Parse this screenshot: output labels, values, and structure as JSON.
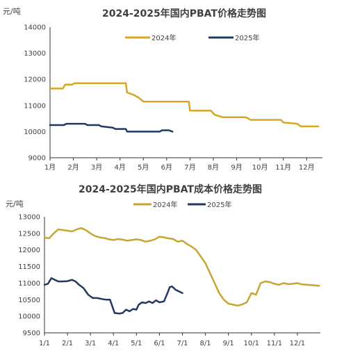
{
  "chart_data": [
    {
      "type": "line",
      "title": "2024-2025年国内PBAT价格走势图",
      "ylabel": "元/吨",
      "xlabel": "",
      "ylim": [
        9000,
        14000
      ],
      "y_ticks": [
        "14000",
        "13000",
        "12000",
        "11000",
        "10000",
        "9000"
      ],
      "x_ticks": [
        "1月",
        "2月",
        "3月",
        "4月",
        "5月",
        "6月",
        "7月",
        "8月",
        "9月",
        "10月",
        "11月",
        "12月"
      ],
      "legend": "top-right",
      "series": [
        {
          "name": "2024年",
          "color": "#DAA520",
          "points": [
            [
              1.0,
              11650
            ],
            [
              1.55,
              11650
            ],
            [
              1.65,
              11800
            ],
            [
              1.95,
              11800
            ],
            [
              2.05,
              11850
            ],
            [
              3.4,
              11850
            ],
            [
              3.5,
              11850
            ],
            [
              4.25,
              11850
            ],
            [
              4.3,
              11500
            ],
            [
              4.6,
              11400
            ],
            [
              4.8,
              11300
            ],
            [
              5.0,
              11150
            ],
            [
              5.8,
              11150
            ],
            [
              6.5,
              11150
            ],
            [
              6.95,
              11150
            ],
            [
              7.0,
              10800
            ],
            [
              7.9,
              10800
            ],
            [
              8.05,
              10650
            ],
            [
              8.4,
              10550
            ],
            [
              9.4,
              10550
            ],
            [
              9.6,
              10450
            ],
            [
              10.9,
              10450
            ],
            [
              11.0,
              10350
            ],
            [
              11.6,
              10300
            ],
            [
              11.75,
              10200
            ],
            [
              12.5,
              10200
            ]
          ]
        },
        {
          "name": "2025年",
          "color": "#1F3864",
          "points": [
            [
              1.0,
              10250
            ],
            [
              1.6,
              10250
            ],
            [
              1.7,
              10300
            ],
            [
              2.5,
              10300
            ],
            [
              2.6,
              10250
            ],
            [
              3.1,
              10250
            ],
            [
              3.2,
              10200
            ],
            [
              3.7,
              10150
            ],
            [
              3.8,
              10100
            ],
            [
              4.25,
              10100
            ],
            [
              4.3,
              10000
            ],
            [
              5.7,
              10000
            ],
            [
              5.8,
              10050
            ],
            [
              6.1,
              10050
            ],
            [
              6.25,
              10000
            ]
          ]
        }
      ]
    },
    {
      "type": "line",
      "title": "2024-2025年国内PBAT成本价格走势图",
      "ylabel": "元/吨",
      "xlabel": "",
      "ylim": [
        9500,
        13000
      ],
      "y_ticks": [
        "13000",
        "12500",
        "12000",
        "11500",
        "11000",
        "10500",
        "10000",
        "9500"
      ],
      "x_ticks": [
        "1/1",
        "2/1",
        "3/1",
        "4/1",
        "5/1",
        "6/1",
        "7/1",
        "8/1",
        "9/1",
        "10/1",
        "11/1",
        "12/1"
      ],
      "legend": "top-center",
      "series": [
        {
          "name": "2024年",
          "color": "#C8A432",
          "points": [
            [
              1.0,
              12380
            ],
            [
              1.2,
              12350
            ],
            [
              1.4,
              12500
            ],
            [
              1.6,
              12620
            ],
            [
              1.8,
              12600
            ],
            [
              2.0,
              12580
            ],
            [
              2.2,
              12560
            ],
            [
              2.4,
              12620
            ],
            [
              2.6,
              12660
            ],
            [
              2.8,
              12600
            ],
            [
              3.0,
              12500
            ],
            [
              3.2,
              12420
            ],
            [
              3.4,
              12380
            ],
            [
              3.6,
              12360
            ],
            [
              3.8,
              12320
            ],
            [
              4.0,
              12300
            ],
            [
              4.2,
              12330
            ],
            [
              4.4,
              12310
            ],
            [
              4.6,
              12280
            ],
            [
              4.8,
              12300
            ],
            [
              5.0,
              12320
            ],
            [
              5.2,
              12300
            ],
            [
              5.4,
              12250
            ],
            [
              5.6,
              12280
            ],
            [
              5.8,
              12320
            ],
            [
              6.0,
              12400
            ],
            [
              6.2,
              12380
            ],
            [
              6.4,
              12350
            ],
            [
              6.6,
              12330
            ],
            [
              6.8,
              12250
            ],
            [
              7.0,
              12280
            ],
            [
              7.2,
              12180
            ],
            [
              7.4,
              12100
            ],
            [
              7.6,
              12000
            ],
            [
              7.8,
              11800
            ],
            [
              8.0,
              11600
            ],
            [
              8.2,
              11300
            ],
            [
              8.4,
              11000
            ],
            [
              8.6,
              10700
            ],
            [
              8.8,
              10500
            ],
            [
              9.0,
              10380
            ],
            [
              9.2,
              10350
            ],
            [
              9.4,
              10320
            ],
            [
              9.6,
              10360
            ],
            [
              9.8,
              10420
            ],
            [
              10.0,
              10700
            ],
            [
              10.2,
              10650
            ],
            [
              10.4,
              11000
            ],
            [
              10.6,
              11050
            ],
            [
              10.8,
              11030
            ],
            [
              11.0,
              10980
            ],
            [
              11.2,
              10950
            ],
            [
              11.4,
              11000
            ],
            [
              11.6,
              10970
            ],
            [
              11.8,
              10980
            ],
            [
              12.0,
              11000
            ],
            [
              12.2,
              10960
            ],
            [
              12.4,
              10950
            ],
            [
              12.6,
              10940
            ],
            [
              12.95,
              10920
            ]
          ]
        },
        {
          "name": "2025年",
          "color": "#22385E",
          "points": [
            [
              1.0,
              10950
            ],
            [
              1.15,
              10980
            ],
            [
              1.3,
              11150
            ],
            [
              1.45,
              11100
            ],
            [
              1.6,
              11050
            ],
            [
              1.8,
              11050
            ],
            [
              2.0,
              11060
            ],
            [
              2.2,
              11100
            ],
            [
              2.35,
              11050
            ],
            [
              2.5,
              10950
            ],
            [
              2.7,
              10850
            ],
            [
              2.9,
              10650
            ],
            [
              3.1,
              10550
            ],
            [
              3.3,
              10550
            ],
            [
              3.5,
              10520
            ],
            [
              3.7,
              10500
            ],
            [
              3.85,
              10500
            ],
            [
              3.95,
              10300
            ],
            [
              4.05,
              10100
            ],
            [
              4.25,
              10080
            ],
            [
              4.4,
              10100
            ],
            [
              4.55,
              10200
            ],
            [
              4.7,
              10150
            ],
            [
              4.85,
              10220
            ],
            [
              5.0,
              10200
            ],
            [
              5.1,
              10350
            ],
            [
              5.25,
              10420
            ],
            [
              5.4,
              10400
            ],
            [
              5.55,
              10450
            ],
            [
              5.7,
              10400
            ],
            [
              5.85,
              10480
            ],
            [
              6.0,
              10420
            ],
            [
              6.2,
              10450
            ],
            [
              6.35,
              10700
            ],
            [
              6.45,
              10880
            ],
            [
              6.55,
              10900
            ],
            [
              6.7,
              10800
            ],
            [
              6.85,
              10750
            ],
            [
              7.0,
              10700
            ]
          ]
        }
      ]
    }
  ]
}
